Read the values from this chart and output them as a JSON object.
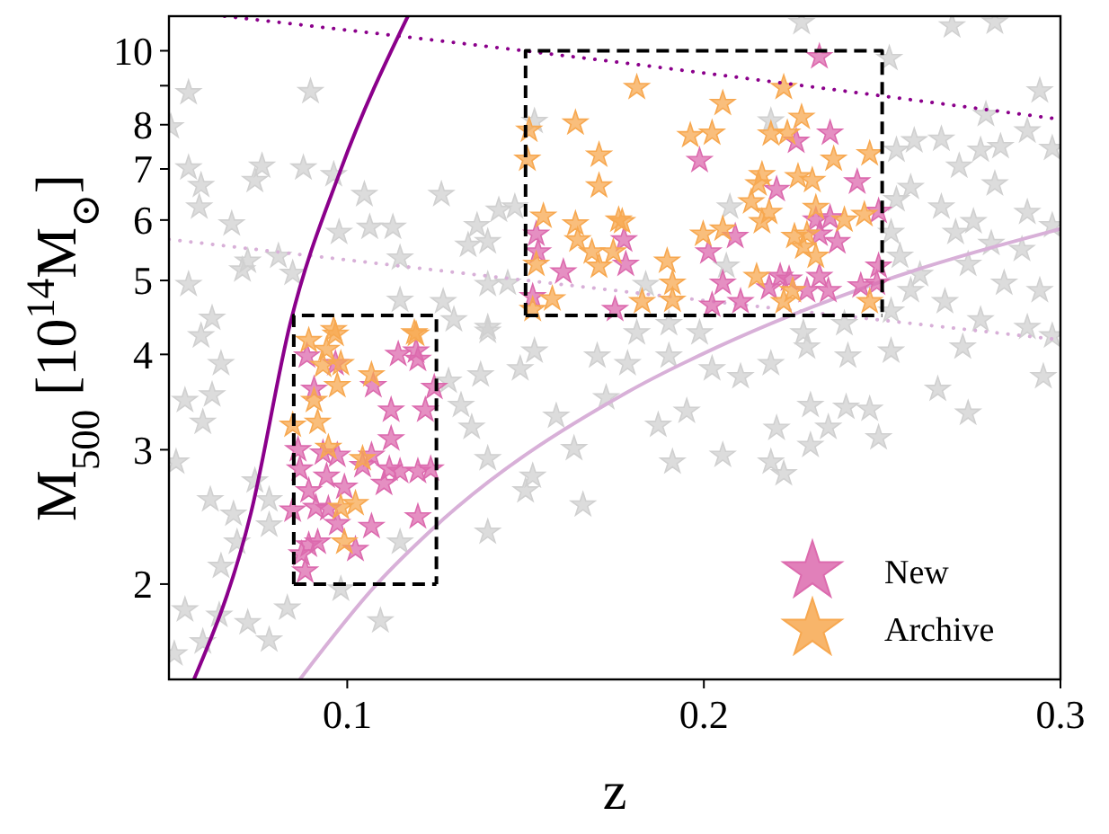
{
  "chart_data": {
    "type": "scatter",
    "xlabel": "z",
    "ylabel": "M$_{500}$ [10$^{14}$M$_{⊙}$]",
    "xlim": [
      0.05,
      0.3
    ],
    "xticks": [
      0.1,
      0.2,
      0.3
    ],
    "ylim": [
      1.5,
      11.1
    ],
    "yticks": [
      2,
      3,
      4,
      5,
      6,
      7,
      8,
      {
        "value": 9,
        "label": null
      },
      10
    ],
    "log": true,
    "grid": false,
    "legend": "bottom right",
    "marker": "star",
    "series": [
      {
        "color": "#d0d0d0",
        "marker": "star",
        "x": [
          0.0555,
          0.0897,
          0.0505,
          0.0555,
          0.059,
          0.0585,
          0.0761,
          0.0741,
          0.0877,
          0.0962,
          0.0676,
          0.1048,
          0.1264,
          0.0977,
          0.1063,
          0.1128,
          0.0721,
          0.0706,
          0.0807,
          0.0847,
          0.1148,
          0.0555,
          0.0621,
          0.1148,
          0.1269,
          0.059,
          0.1339,
          0.1394,
          0.1364,
          0.1425,
          0.147,
          0.1525,
          0.1394,
          0.145,
          0.1299,
          0.1394,
          0.2274,
          0.2696,
          0.2816,
          0.252,
          0.2942,
          0.2188,
          0.2791,
          0.2907,
          0.259,
          0.2666,
          0.2776,
          0.2832,
          0.2977,
          0.254,
          0.2716,
          0.2816,
          0.258,
          0.254,
          0.2666,
          0.2756,
          0.2907,
          0.2977,
          0.2525,
          0.2706,
          0.2806,
          0.2892,
          0.255,
          0.2606,
          0.2741,
          0.2842,
          0.2942,
          0.258,
          0.2676,
          0.2525,
          0.2776,
          0.2907,
          0.2977,
          0.2073,
          0.2063,
          0.1837,
          0.1902,
          0.1988,
          0.1812,
          0.2394,
          0.2279,
          0.1786,
          0.1902,
          0.2023,
          0.2103,
          0.2188,
          0.2289,
          0.2404,
          0.2525,
          0.2726,
          0.2952,
          0.2656,
          0.2741,
          0.1872,
          0.1952,
          0.2299,
          0.2399,
          0.2465,
          0.2204,
          0.2349,
          0.2299,
          0.249,
          0.1912,
          0.2053,
          0.2188,
          0.2224,
          0.0646,
          0.0545,
          0.0621,
          0.0595,
          0.052,
          0.0616,
          0.0681,
          0.0741,
          0.0781,
          0.0781,
          0.0691,
          0.0646,
          0.0545,
          0.0641,
          0.0595,
          0.0515,
          0.0721,
          0.0781,
          0.0832,
          0.0982,
          0.1093,
          0.1148,
          0.1319,
          0.1349,
          0.1394,
          0.1394,
          0.152,
          0.15,
          0.1661,
          0.1525,
          0.1485,
          0.1586,
          0.1636,
          0.1726,
          0.1701,
          0.1284,
          0.1374,
          0.1394
        ],
        "values": [
          8.81,
          8.84,
          7.95,
          7.02,
          6.66,
          6.24,
          7.06,
          6.76,
          7.02,
          6.88,
          5.93,
          6.48,
          6.48,
          5.78,
          5.87,
          5.87,
          5.3,
          5.16,
          5.38,
          5.11,
          5.35,
          4.94,
          4.46,
          4.71,
          4.69,
          4.23,
          5.56,
          5.62,
          5.9,
          6.18,
          6.24,
          8.08,
          4.94,
          4.96,
          4.44,
          4.34,
          10.89,
          10.78,
          10.9,
          9.77,
          8.86,
          8.09,
          8.25,
          7.85,
          7.62,
          7.66,
          7.41,
          7.49,
          7.45,
          7.41,
          7.06,
          6.69,
          6.62,
          6.38,
          6.24,
          5.97,
          6.14,
          5.9,
          5.78,
          5.78,
          5.59,
          5.49,
          5.38,
          5.09,
          5.25,
          4.96,
          4.85,
          4.85,
          4.69,
          4.56,
          4.44,
          4.34,
          4.23,
          6.24,
          5.22,
          4.94,
          4.39,
          4.27,
          4.27,
          4.39,
          4.27,
          3.89,
          3.98,
          3.83,
          3.74,
          3.89,
          4.09,
          3.98,
          4.04,
          4.09,
          3.74,
          3.6,
          3.35,
          3.23,
          3.37,
          3.43,
          3.41,
          3.39,
          3.2,
          3.21,
          3.04,
          3.11,
          2.89,
          2.95,
          2.89,
          2.79,
          3.89,
          3.48,
          3.54,
          3.26,
          2.89,
          2.58,
          2.47,
          2.73,
          2.58,
          2.39,
          2.27,
          2.11,
          1.85,
          1.82,
          1.68,
          1.62,
          1.78,
          1.69,
          1.86,
          1.97,
          1.79,
          2.27,
          3.43,
          3.21,
          2.92,
          2.34,
          2.77,
          2.65,
          2.54,
          4.04,
          3.83,
          3.32,
          3.01,
          3.51,
          3.98,
          3.69,
          3.76,
          4.29
        ]
      },
      {
        "type": "line",
        "color": "#d8b0d8",
        "marker": "none",
        "line_style": "solid",
        "x": [
          0.0867,
          0.1083,
          0.1234,
          0.1786,
          0.2038,
          0.249,
          0.3
        ],
        "values": [
          1.5,
          2.0,
          2.35,
          3.57,
          4.09,
          4.97,
          5.84
        ]
      },
      {
        "type": "line",
        "color": "#d8b0d8",
        "marker": "none",
        "line_style": "dotted",
        "x": [
          0.05,
          0.1786,
          0.3
        ],
        "values": [
          5.66,
          4.83,
          4.18
        ]
      },
      {
        "name": "New",
        "color": "#dc6aae",
        "marker": "star",
        "x": [
          0.0887,
          0.0967,
          0.0907,
          0.1073,
          0.1143,
          0.1193,
          0.1198,
          0.1244,
          0.1123,
          0.1219,
          0.1123,
          0.0862,
          0.0932,
          0.0972,
          0.1068,
          0.0867,
          0.0942,
          0.1043,
          0.1118,
          0.1148,
          0.1198,
          0.1234,
          0.1103,
          0.0892,
          0.0992,
          0.0847,
          0.0912,
          0.0947,
          0.0972,
          0.1198,
          0.1068,
          0.0892,
          0.0917,
          0.0872,
          0.0882,
          0.1023,
          0.153,
          0.1535,
          0.1606,
          0.152,
          0.1751,
          0.1776,
          0.2324,
          0.1988,
          0.2259,
          0.2354,
          0.2204,
          0.243,
          0.2314,
          0.2354,
          0.2324,
          0.2374,
          0.249,
          0.2088,
          0.1781,
          0.2013,
          0.2053,
          0.2214,
          0.2239,
          0.2289,
          0.2324,
          0.2349,
          0.2183,
          0.2103,
          0.2023,
          0.244,
          0.249,
          0.2485
        ],
        "values": [
          3.98,
          3.89,
          3.6,
          3.64,
          4.0,
          4.04,
          3.94,
          3.62,
          3.38,
          3.38,
          3.1,
          3.0,
          2.97,
          2.95,
          2.95,
          2.83,
          2.77,
          2.86,
          2.83,
          2.81,
          2.81,
          2.83,
          2.71,
          2.65,
          2.68,
          2.5,
          2.52,
          2.51,
          2.4,
          2.45,
          2.38,
          2.25,
          2.27,
          2.19,
          2.08,
          2.22,
          5.75,
          5.45,
          5.13,
          4.76,
          4.58,
          5.65,
          9.82,
          7.18,
          7.61,
          7.8,
          6.58,
          6.73,
          6.0,
          6.04,
          5.75,
          5.62,
          6.16,
          5.71,
          5.25,
          5.45,
          4.96,
          5.06,
          5.02,
          4.85,
          5.06,
          4.85,
          4.89,
          4.69,
          4.64,
          4.92,
          5.22,
          4.96
        ]
      },
      {
        "name": "Archive",
        "color": "#f7a850",
        "marker": "star",
        "x": [
          0.0892,
          0.0942,
          0.0967,
          0.0932,
          0.0982,
          0.0972,
          0.1068,
          0.1193,
          0.0907,
          0.0847,
          0.0917,
          0.0947,
          0.1043,
          0.0982,
          0.1023,
          0.0992,
          0.0962,
          0.1188,
          0.151,
          0.164,
          0.1505,
          0.1706,
          0.1706,
          0.155,
          0.164,
          0.1646,
          0.1686,
          0.1746,
          0.153,
          0.1706,
          0.1575,
          0.152,
          0.1761,
          0.1812,
          0.2224,
          0.2053,
          0.2274,
          0.1962,
          0.2023,
          0.2188,
          0.2234,
          0.2465,
          0.2364,
          0.2163,
          0.2153,
          0.2304,
          0.2264,
          0.2133,
          0.2183,
          0.2163,
          0.2314,
          0.2394,
          0.245,
          0.2053,
          0.1998,
          0.2254,
          0.2289,
          0.2279,
          0.1897,
          0.2314,
          0.2148,
          0.1912,
          0.1912,
          0.1827,
          0.2249,
          0.2224,
          0.2465,
          0.1771
        ],
        "values": [
          4.17,
          4.06,
          4.25,
          3.87,
          3.89,
          3.64,
          3.76,
          4.25,
          3.48,
          3.23,
          3.26,
          3.02,
          2.92,
          2.52,
          2.55,
          2.27,
          4.31,
          4.27,
          7.87,
          8.04,
          7.21,
          7.3,
          6.65,
          6.07,
          5.93,
          5.65,
          5.45,
          5.45,
          5.25,
          5.22,
          4.73,
          4.58,
          6.0,
          8.95,
          8.95,
          8.53,
          8.18,
          7.74,
          7.8,
          7.78,
          7.8,
          7.33,
          7.21,
          6.88,
          6.69,
          6.76,
          6.84,
          6.34,
          6.14,
          5.97,
          6.23,
          6.0,
          6.1,
          5.84,
          5.75,
          5.71,
          5.75,
          5.53,
          5.3,
          5.38,
          5.06,
          4.96,
          4.71,
          4.69,
          4.85,
          4.69,
          4.69,
          5.97
        ]
      },
      {
        "type": "line",
        "color": "#8b008b",
        "marker": "none",
        "line_style": "solid",
        "x": [
          0.057,
          0.073,
          0.084,
          0.098,
          0.117
        ],
        "values": [
          1.5,
          2.48,
          4.39,
          6.95,
          11.1
        ]
      },
      {
        "type": "line",
        "color": "#8b008b",
        "marker": "none",
        "line_style": "dotted",
        "x": [
          0.0656,
          0.1495,
          0.3
        ],
        "values": [
          11.1,
          10.0,
          8.13
        ]
      },
      {
        "type": "line",
        "color": "#000000",
        "marker": "none",
        "line_style": "dashed",
        "x": [
          0.085,
          0.085,
          0.125,
          0.125
        ],
        "values": [
          2,
          4.5,
          4.5,
          2
        ]
      },
      {
        "type": "line",
        "color": "#000000",
        "marker": "none",
        "line_style": "dashed",
        "x": [
          0.085,
          0.125
        ],
        "values": [
          2,
          2
        ]
      },
      {
        "type": "line",
        "color": "#000000",
        "marker": "none",
        "line_style": "dashed",
        "x": [
          0.15,
          0.15,
          0.25,
          0.25
        ],
        "values": [
          4.5,
          10,
          10,
          4.5
        ]
      },
      {
        "type": "line",
        "color": "#000000",
        "marker": "none",
        "line_style": "dashed",
        "x": [
          0.15,
          0.25
        ],
        "values": [
          4.5,
          4.5
        ]
      }
    ]
  }
}
